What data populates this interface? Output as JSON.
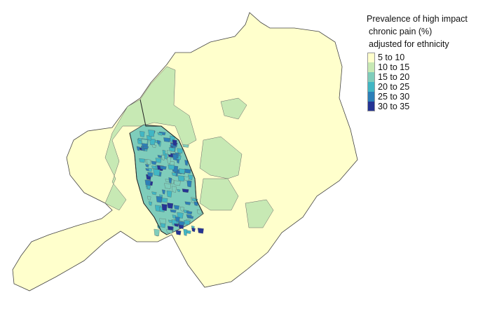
{
  "legend": {
    "title_line1": "Prevalence of high impact",
    "title_line2": "chronic pain (%)",
    "title_line3": "adjusted for ethnicity",
    "items": [
      {
        "label": "5 to 10",
        "color": "#ffffcc"
      },
      {
        "label": "10 to 15",
        "color": "#c7e9b4"
      },
      {
        "label": "15 to 20",
        "color": "#7fcdbb"
      },
      {
        "label": "20 to 25",
        "color": "#41b6c4"
      },
      {
        "label": "25 to 30",
        "color": "#2c7fb8"
      },
      {
        "label": "30 to 35",
        "color": "#253494"
      }
    ]
  },
  "boundary_color": "#555555"
}
